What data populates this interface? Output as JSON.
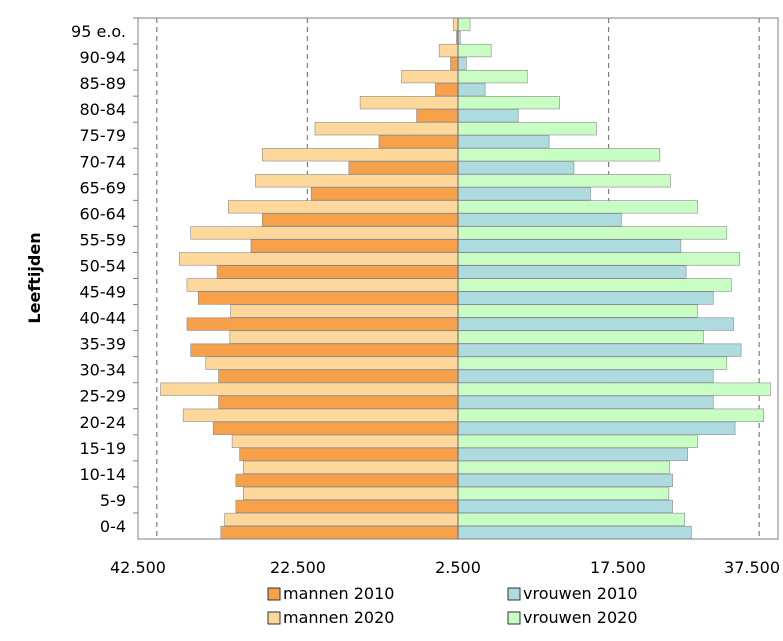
{
  "chart_data": {
    "type": "bar",
    "orientation": "horizontal",
    "title": "",
    "xlabel": "",
    "ylabel": "Leeftijden",
    "x_tick_labels": [
      "42.500",
      "22.500",
      "2.500",
      "17.500",
      "37.500"
    ],
    "categories": [
      "0-4",
      "5-9",
      "10-14",
      "15-19",
      "20-24",
      "25-29",
      "30-34",
      "35-39",
      "40-44",
      "45-49",
      "50-54",
      "55-59",
      "60-64",
      "65-69",
      "70-74",
      "75-79",
      "80-84",
      "85-89",
      "90-94",
      "95 e.o."
    ],
    "xlim": [
      -42500,
      42500
    ],
    "grid": true,
    "legend_position": "bottom",
    "series": [
      {
        "name": "mannen 2010",
        "side": "left",
        "color": "#F7A04A",
        "values": [
          31500,
          29500,
          29500,
          29000,
          32500,
          31800,
          31800,
          35500,
          36000,
          34500,
          32000,
          27500,
          26000,
          19500,
          14500,
          10500,
          5500,
          3000,
          1000,
          200
        ]
      },
      {
        "name": "mannen 2020",
        "side": "left",
        "color": "#FDD89A",
        "values": [
          31000,
          28500,
          28500,
          30000,
          36500,
          39500,
          33500,
          30300,
          30200,
          36000,
          37000,
          35500,
          30500,
          26900,
          26000,
          19000,
          13000,
          7500,
          2500,
          600
        ]
      },
      {
        "name": "vrouwen 2010",
        "side": "right",
        "color": "#AEDBE0",
        "values": [
          31000,
          28500,
          28500,
          30500,
          36800,
          33900,
          33900,
          37600,
          36600,
          33900,
          30300,
          29600,
          21700,
          17600,
          15400,
          12100,
          8000,
          3600,
          1100,
          300
        ]
      },
      {
        "name": "vrouwen 2020",
        "side": "right",
        "color": "#C8FDC3",
        "values": [
          30100,
          28000,
          28100,
          31800,
          40600,
          41500,
          35700,
          32600,
          31800,
          36300,
          37400,
          35700,
          31800,
          28200,
          26800,
          18400,
          13500,
          9200,
          4400,
          1600
        ]
      }
    ]
  }
}
